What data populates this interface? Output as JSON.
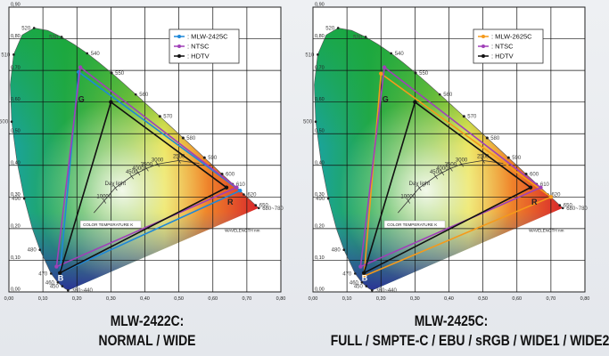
{
  "chart_data": [
    {
      "type": "scatter",
      "title": "",
      "xlabel": "",
      "ylabel": "",
      "xlim": [
        0,
        0.8
      ],
      "ylim": [
        0,
        0.9
      ],
      "x_ticks": [
        "0,00",
        "0,10",
        "0,20",
        "0,30",
        "0,40",
        "0,50",
        "0,60",
        "0,70",
        "0,80"
      ],
      "y_ticks": [
        "0,00",
        "0,10",
        "0,20",
        "0,30",
        "0,40",
        "0,50",
        "0,60",
        "0,70",
        "0,80",
        "0,90"
      ],
      "grid": true,
      "legend_position": "top-right",
      "wavelength_labels": [
        {
          "text": "520",
          "x": 0.074,
          "y": 0.834
        },
        {
          "text": "530",
          "x": 0.155,
          "y": 0.806
        },
        {
          "text": "540",
          "x": 0.23,
          "y": 0.754
        },
        {
          "text": "550",
          "x": 0.302,
          "y": 0.692
        },
        {
          "text": "560",
          "x": 0.373,
          "y": 0.624
        },
        {
          "text": "570",
          "x": 0.444,
          "y": 0.555
        },
        {
          "text": "580",
          "x": 0.512,
          "y": 0.487
        },
        {
          "text": "590",
          "x": 0.575,
          "y": 0.424
        },
        {
          "text": "600",
          "x": 0.627,
          "y": 0.372
        },
        {
          "text": "610",
          "x": 0.658,
          "y": 0.341
        },
        {
          "text": "620",
          "x": 0.691,
          "y": 0.308
        },
        {
          "text": "650",
          "x": 0.726,
          "y": 0.274
        },
        {
          "text": "680~780",
          "x": 0.735,
          "y": 0.265
        },
        {
          "text": "510",
          "x": 0.014,
          "y": 0.75
        },
        {
          "text": "500",
          "x": 0.008,
          "y": 0.538
        },
        {
          "text": "490",
          "x": 0.045,
          "y": 0.295
        },
        {
          "text": "480",
          "x": 0.091,
          "y": 0.133
        },
        {
          "text": "470",
          "x": 0.124,
          "y": 0.058
        },
        {
          "text": "460",
          "x": 0.144,
          "y": 0.03
        },
        {
          "text": "450",
          "x": 0.157,
          "y": 0.018
        },
        {
          "text": "380~440",
          "x": 0.174,
          "y": 0.005
        }
      ],
      "temperature_labels": [
        {
          "text": "2500",
          "x": 0.5,
          "y": 0.415
        },
        {
          "text": "3000",
          "x": 0.437,
          "y": 0.404
        },
        {
          "text": "3500",
          "x": 0.405,
          "y": 0.39
        },
        {
          "text": "4000",
          "x": 0.38,
          "y": 0.377
        },
        {
          "text": "4500",
          "x": 0.361,
          "y": 0.365
        },
        {
          "text": "Day light",
          "x": 0.313,
          "y": 0.329
        },
        {
          "text": "10000",
          "x": 0.28,
          "y": 0.288
        }
      ],
      "region_labels": [
        {
          "text": "G",
          "x": 0.213,
          "y": 0.6
        },
        {
          "text": "R",
          "x": 0.651,
          "y": 0.275
        },
        {
          "text": "B",
          "x": 0.152,
          "y": 0.035
        }
      ],
      "annotations": {
        "color_temperature": "COLOR TEMPERATURE  K",
        "wavelength": "WAVELENGTH  nm"
      },
      "series": [
        {
          "name": ": MLW-2425C",
          "color": "#1e88d8",
          "points": [
            [
              0.68,
              0.32
            ],
            [
              0.205,
              0.695
            ],
            [
              0.15,
              0.06
            ]
          ]
        },
        {
          "name": ": NTSC",
          "color": "#a040b8",
          "points": [
            [
              0.67,
              0.33
            ],
            [
              0.21,
              0.71
            ],
            [
              0.14,
              0.08
            ]
          ]
        },
        {
          "name": ": HDTV",
          "color": "#111111",
          "points": [
            [
              0.64,
              0.33
            ],
            [
              0.3,
              0.6
            ],
            [
              0.15,
              0.06
            ]
          ]
        }
      ]
    },
    {
      "type": "scatter",
      "title": "",
      "xlabel": "",
      "ylabel": "",
      "xlim": [
        0,
        0.8
      ],
      "ylim": [
        0,
        0.9
      ],
      "x_ticks": [
        "0,00",
        "0,10",
        "0,20",
        "0,30",
        "0,40",
        "0,50",
        "0,60",
        "0,70",
        "0,80"
      ],
      "y_ticks": [
        "0,00",
        "0,10",
        "0,20",
        "0,30",
        "0,40",
        "0,50",
        "0,60",
        "0,70",
        "0,80",
        "0,90"
      ],
      "grid": true,
      "legend_position": "top-right",
      "wavelength_labels": [
        {
          "text": "520",
          "x": 0.074,
          "y": 0.834
        },
        {
          "text": "530",
          "x": 0.155,
          "y": 0.806
        },
        {
          "text": "540",
          "x": 0.23,
          "y": 0.754
        },
        {
          "text": "550",
          "x": 0.302,
          "y": 0.692
        },
        {
          "text": "560",
          "x": 0.373,
          "y": 0.624
        },
        {
          "text": "570",
          "x": 0.444,
          "y": 0.555
        },
        {
          "text": "580",
          "x": 0.512,
          "y": 0.487
        },
        {
          "text": "590",
          "x": 0.575,
          "y": 0.424
        },
        {
          "text": "600",
          "x": 0.627,
          "y": 0.372
        },
        {
          "text": "610",
          "x": 0.658,
          "y": 0.341
        },
        {
          "text": "620",
          "x": 0.691,
          "y": 0.308
        },
        {
          "text": "650",
          "x": 0.726,
          "y": 0.274
        },
        {
          "text": "680~780",
          "x": 0.735,
          "y": 0.265
        },
        {
          "text": "510",
          "x": 0.014,
          "y": 0.75
        },
        {
          "text": "500",
          "x": 0.008,
          "y": 0.538
        },
        {
          "text": "490",
          "x": 0.045,
          "y": 0.295
        },
        {
          "text": "480",
          "x": 0.091,
          "y": 0.133
        },
        {
          "text": "470",
          "x": 0.124,
          "y": 0.058
        },
        {
          "text": "460",
          "x": 0.144,
          "y": 0.03
        },
        {
          "text": "450",
          "x": 0.157,
          "y": 0.018
        },
        {
          "text": "380~440",
          "x": 0.174,
          "y": 0.005
        }
      ],
      "temperature_labels": [
        {
          "text": "2500",
          "x": 0.5,
          "y": 0.415
        },
        {
          "text": "3000",
          "x": 0.437,
          "y": 0.404
        },
        {
          "text": "3500",
          "x": 0.405,
          "y": 0.39
        },
        {
          "text": "4000",
          "x": 0.38,
          "y": 0.377
        },
        {
          "text": "4500",
          "x": 0.361,
          "y": 0.365
        },
        {
          "text": "Day light",
          "x": 0.313,
          "y": 0.329
        },
        {
          "text": "10000",
          "x": 0.28,
          "y": 0.288
        }
      ],
      "region_labels": [
        {
          "text": "G",
          "x": 0.213,
          "y": 0.6
        },
        {
          "text": "R",
          "x": 0.651,
          "y": 0.275
        },
        {
          "text": "B",
          "x": 0.152,
          "y": 0.035
        }
      ],
      "annotations": {
        "color_temperature": "COLOR TEMPERATURE  K",
        "wavelength": "WAVELENGTH  nm"
      },
      "series": [
        {
          "name": ": MLW-2625C",
          "color": "#f59a1b",
          "points": [
            [
              0.7,
              0.3
            ],
            [
              0.2,
              0.69
            ],
            [
              0.15,
              0.05
            ]
          ]
        },
        {
          "name": ": NTSC",
          "color": "#a040b8",
          "points": [
            [
              0.67,
              0.33
            ],
            [
              0.21,
              0.71
            ],
            [
              0.14,
              0.08
            ]
          ]
        },
        {
          "name": ": HDTV",
          "color": "#111111",
          "points": [
            [
              0.64,
              0.33
            ],
            [
              0.3,
              0.6
            ],
            [
              0.15,
              0.06
            ]
          ]
        }
      ]
    }
  ],
  "captions": [
    {
      "line1": "MLW-2422C:",
      "line2": "NORMAL / WIDE"
    },
    {
      "line1": "MLW-2425C:",
      "line2": "FULL / SMPTE-C / EBU / sRGB / WIDE1 / WIDE2"
    }
  ]
}
